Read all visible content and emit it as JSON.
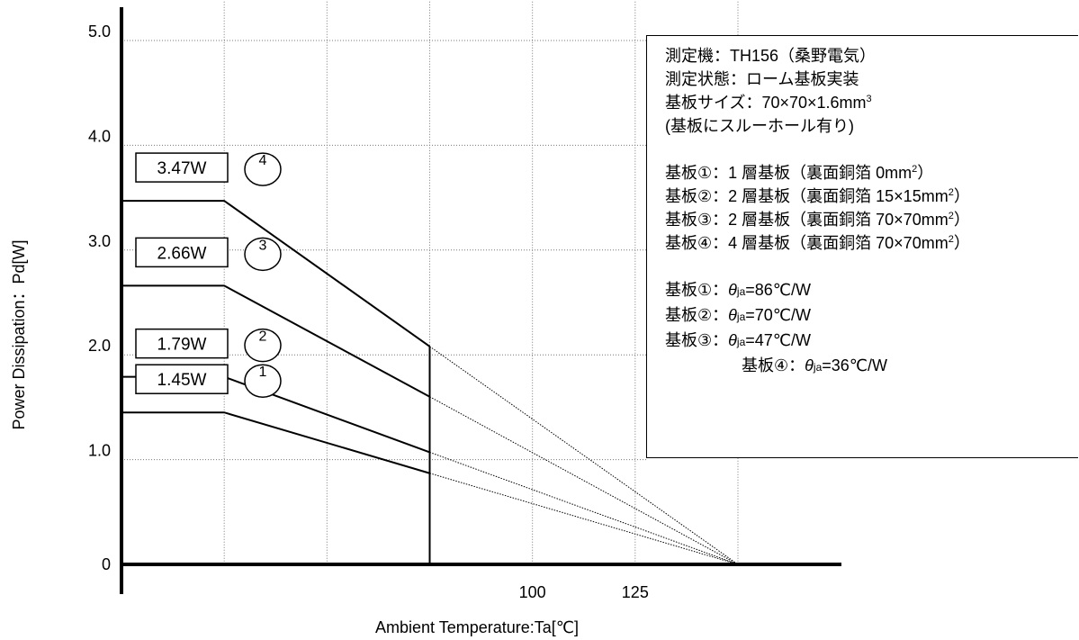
{
  "chart_data": {
    "type": "line",
    "xlabel": "Ambient Temperature:Ta[℃]",
    "ylabel": "Power Dissipation：Pd[W]",
    "xlim": [
      0,
      150
    ],
    "ylim": [
      0,
      5.5
    ],
    "x_ticks": [
      {
        "value": 100,
        "label": "100"
      },
      {
        "value": 125,
        "label": "125"
      }
    ],
    "y_ticks": [
      {
        "value": 0,
        "label": "0"
      },
      {
        "value": 1,
        "label": "1.0"
      },
      {
        "value": 2,
        "label": "2.0"
      },
      {
        "value": 3,
        "label": "3.0"
      },
      {
        "value": 4,
        "label": "4.0"
      },
      {
        "value": 5,
        "label": "5.0"
      }
    ],
    "x_gridlines": [
      25,
      50,
      75,
      100,
      125,
      150
    ],
    "grid": true,
    "derating_end_x": 150,
    "ta_limit_x": 75,
    "series": [
      {
        "name": "1",
        "label": "1.45W",
        "values": [
          [
            0,
            1.45
          ],
          [
            25,
            1.45
          ],
          [
            75,
            0.87
          ]
        ]
      },
      {
        "name": "2",
        "label": "1.79W",
        "values": [
          [
            0,
            1.79
          ],
          [
            25,
            1.79
          ],
          [
            75,
            1.07
          ]
        ]
      },
      {
        "name": "3",
        "label": "2.66W",
        "values": [
          [
            0,
            2.66
          ],
          [
            25,
            2.66
          ],
          [
            75,
            1.6
          ]
        ]
      },
      {
        "name": "4",
        "label": "3.47W",
        "values": [
          [
            0,
            3.47
          ],
          [
            25,
            3.47
          ],
          [
            75,
            2.08
          ]
        ]
      }
    ]
  },
  "info": {
    "line1": "測定機：TH156（桑野電気）",
    "line2": "測定状態：ローム基板実装",
    "line3": "基板サイズ：70×70×1.6mm",
    "line3_sup": "3",
    "line4": "(基板にスルーホール有り)",
    "boards": [
      {
        "text": "基板①：1 層基板（裏面銅箔 0mm",
        "sup": "2",
        "close": "）"
      },
      {
        "text": "基板②：2 層基板（裏面銅箔 15×15mm",
        "sup": "2",
        "close": "）"
      },
      {
        "text": "基板③：2 層基板（裏面銅箔 70×70mm",
        "sup": "2",
        "close": "）"
      },
      {
        "text": "基板④：4 層基板（裏面銅箔 70×70mm",
        "sup": "2",
        "close": "）"
      }
    ],
    "thetas": [
      {
        "prefix": "基板①：",
        "symbol": "θ",
        "sub": "ja",
        "value": "=86℃/W"
      },
      {
        "prefix": "基板②：",
        "symbol": "θ",
        "sub": "ja",
        "value": "=70℃/W"
      },
      {
        "prefix": "基板③：",
        "symbol": "θ",
        "sub": "ja",
        "value": "=47℃/W"
      },
      {
        "prefix": "基板④：",
        "symbol": "θ",
        "sub": "ja",
        "value": "=36℃/W"
      }
    ]
  }
}
